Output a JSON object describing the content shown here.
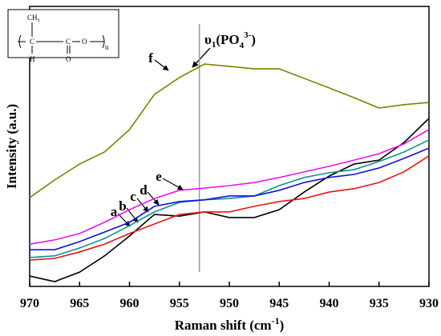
{
  "chart_data": {
    "type": "line",
    "x_label": {
      "main": "Raman shift (cm",
      "sup": "-1",
      "close": ")"
    },
    "y_label": "Intensity (a.u.)",
    "x": [
      970,
      967.5,
      965,
      962.5,
      960,
      957.5,
      955,
      952.5,
      950,
      947.5,
      945,
      942.5,
      940,
      937.5,
      935,
      932.5,
      930
    ],
    "xlim": [
      970,
      930
    ],
    "xticks": [
      970,
      965,
      960,
      955,
      950,
      945,
      940,
      935,
      930
    ],
    "ylim": [
      0,
      100
    ],
    "marker_x": 953,
    "annotation": {
      "base": "υ",
      "sub1": "1",
      "open": "(PO",
      "sub2": "4",
      "sup": "3-",
      "close": ")"
    },
    "series": [
      {
        "name": "a",
        "color": "#000000",
        "values": [
          3.7,
          1.7,
          5.1,
          10.9,
          18,
          25.7,
          25.1,
          26.6,
          24.6,
          24.6,
          27.4,
          33.7,
          39.4,
          43.7,
          45.1,
          51.4,
          60
        ]
      },
      {
        "name": "b",
        "color": "#ee1111",
        "values": [
          9.4,
          10,
          12.3,
          15.1,
          18.9,
          22.3,
          25.7,
          26.6,
          26.6,
          28.6,
          30.3,
          31.4,
          33.7,
          34.9,
          37.1,
          40.9,
          46.6
        ]
      },
      {
        "name": "c",
        "color": "#119090",
        "values": [
          10.3,
          10.9,
          13.7,
          17.1,
          21.7,
          26.6,
          30,
          30.9,
          31.4,
          32.3,
          36,
          38.9,
          40.6,
          41.7,
          44.6,
          48,
          52.3
        ]
      },
      {
        "name": "d",
        "color": "#1111dd",
        "values": [
          13.1,
          13.1,
          16,
          19.4,
          22.9,
          28.6,
          30.3,
          30.9,
          32.3,
          32.3,
          34.3,
          37.1,
          38.9,
          40,
          42.3,
          45.7,
          49.4
        ]
      },
      {
        "name": "e",
        "color": "#ee11ee",
        "values": [
          15.1,
          16.6,
          18.9,
          22.9,
          27.4,
          31.4,
          34.3,
          35.1,
          36,
          37.1,
          38.9,
          40.9,
          42.9,
          45.1,
          47.4,
          50.9,
          56
        ]
      },
      {
        "name": "f",
        "color": "#808000",
        "values": [
          31.7,
          38,
          43.7,
          48,
          56,
          68.6,
          74.6,
          79.4,
          78.6,
          77.7,
          77.7,
          74.3,
          70.9,
          67.4,
          63.7,
          64.9,
          65.7
        ]
      }
    ]
  },
  "inset": {
    "ch": "CH",
    "ch_sub": "3",
    "c1": "C",
    "c2": "C",
    "o1": "O",
    "h": "H",
    "o2": "O",
    "n": "n"
  }
}
